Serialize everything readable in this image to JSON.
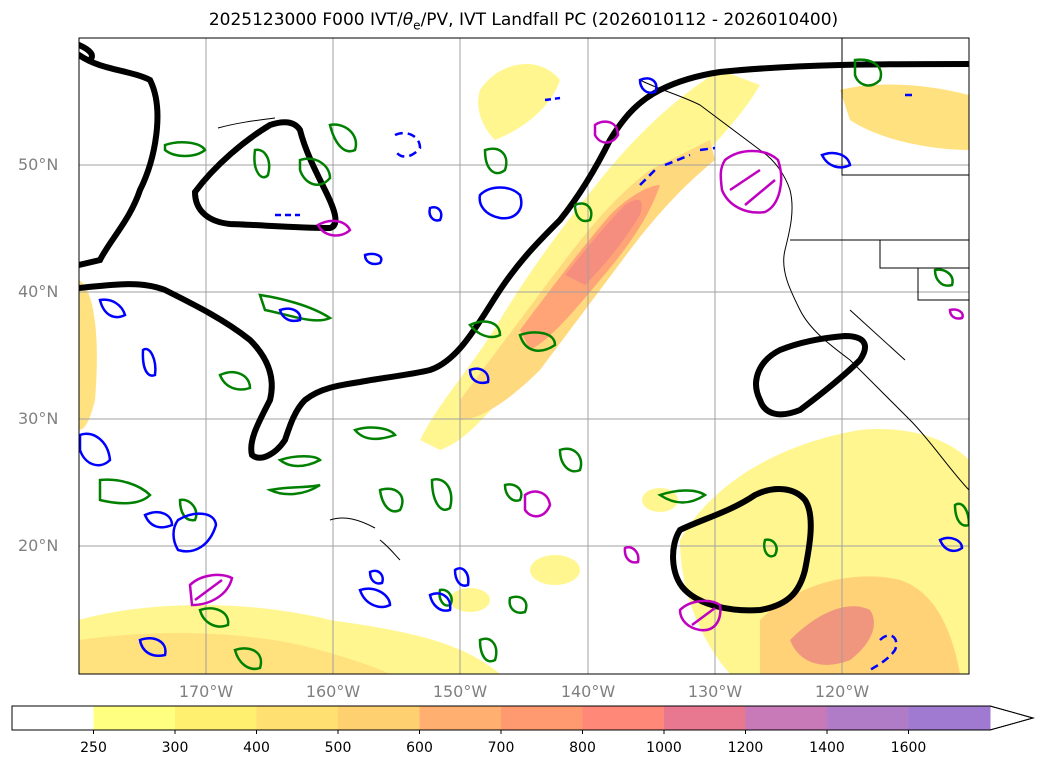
{
  "title": {
    "prefix": "2025123000 F000 IVT/",
    "theta": "θ",
    "theta_sub": "e",
    "suffix": "/PV, IVT Landfall PC (2026010112 - 2026010400)"
  },
  "map": {
    "lat_labels": [
      "50°N",
      "40°N",
      "30°N",
      "20°N"
    ],
    "lon_labels": [
      "170°W",
      "160°W",
      "150°W",
      "140°W",
      "130°W",
      "120°W"
    ],
    "extent": {
      "lon": [
        -180,
        -110
      ],
      "lat": [
        10,
        60
      ]
    },
    "gridlines": true
  },
  "colorbar": {
    "levels": [
      "250",
      "300",
      "400",
      "500",
      "600",
      "700",
      "800",
      "1000",
      "1200",
      "1400",
      "1600"
    ],
    "colors": [
      "#ffffff",
      "#ffff80",
      "#fff070",
      "#ffe070",
      "#ffd070",
      "#ffb070",
      "#ff9a70",
      "#ff8878",
      "#e87890",
      "#c87ab8",
      "#b07cc8",
      "#a07ad0"
    ],
    "extend": "max"
  },
  "legend_colors": {
    "ivt_fill_low": "#fff580",
    "ivt_fill_high": "#f08070",
    "pc_contour": "#000000",
    "theta_e_contour": "#008000",
    "pv_contour": "#0000ff",
    "landfall_contour": "#c000c0"
  }
}
